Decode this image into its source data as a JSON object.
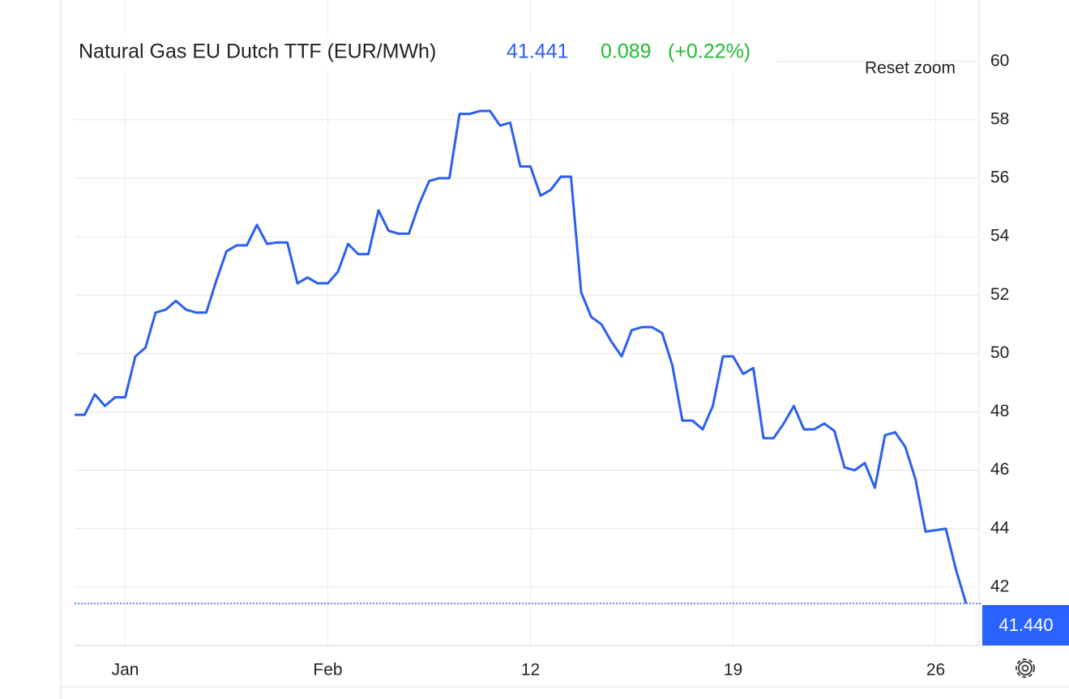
{
  "chart_data": {
    "type": "line",
    "title": "Natural Gas EU Dutch TTF (EUR/MWh)",
    "price": 41.441,
    "change": 0.089,
    "change_pct": "(+0.22%)",
    "reset_zoom": "Reset zoom",
    "categories": [
      null,
      null,
      null,
      null,
      null,
      "Jan",
      null,
      null,
      null,
      null,
      null,
      null,
      null,
      null,
      null,
      null,
      null,
      null,
      null,
      null,
      null,
      null,
      null,
      null,
      null,
      "Feb",
      null,
      null,
      null,
      null,
      null,
      null,
      null,
      null,
      null,
      null,
      null,
      null,
      null,
      null,
      null,
      null,
      null,
      null,
      null,
      "12",
      null,
      null,
      null,
      null,
      null,
      null,
      null,
      null,
      null,
      null,
      null,
      null,
      null,
      null,
      null,
      null,
      null,
      null,
      null,
      "19",
      null,
      null,
      null,
      null,
      null,
      null,
      null,
      null,
      null,
      null,
      null,
      null,
      null,
      null,
      null,
      null,
      null,
      null,
      null,
      "26",
      null,
      null,
      null
    ],
    "series": [
      {
        "name": "Natural Gas EU Dutch TTF",
        "color": "#2b5ff2",
        "values": [
          47.9,
          47.9,
          48.6,
          48.2,
          48.5,
          48.5,
          49.9,
          50.2,
          51.4,
          51.5,
          51.8,
          51.5,
          51.4,
          51.4,
          52.5,
          53.5,
          53.7,
          53.7,
          54.4,
          53.75,
          53.8,
          53.8,
          52.4,
          52.6,
          52.4,
          52.4,
          52.8,
          53.75,
          53.4,
          53.4,
          54.9,
          54.2,
          54.1,
          54.1,
          55.1,
          55.9,
          56.0,
          56.0,
          58.2,
          58.2,
          58.3,
          58.3,
          57.8,
          57.9,
          56.4,
          56.4,
          55.4,
          55.6,
          56.05,
          56.05,
          52.1,
          51.25,
          51.0,
          50.4,
          49.9,
          50.8,
          50.9,
          50.9,
          50.7,
          49.6,
          47.7,
          47.7,
          47.4,
          48.2,
          49.9,
          49.9,
          49.3,
          49.5,
          47.1,
          47.1,
          47.6,
          48.2,
          47.4,
          47.4,
          47.6,
          47.35,
          46.1,
          46.0,
          46.25,
          45.4,
          47.2,
          47.3,
          46.8,
          45.7,
          43.9,
          43.95,
          44.0,
          42.6,
          41.441
        ]
      }
    ],
    "last_label": {
      "value": 41.44,
      "label": "41.440"
    },
    "ylim": [
      40,
      62.1
    ],
    "yticks": [
      42,
      44,
      46,
      48,
      50,
      52,
      54,
      56,
      58,
      60
    ],
    "grid": true
  }
}
